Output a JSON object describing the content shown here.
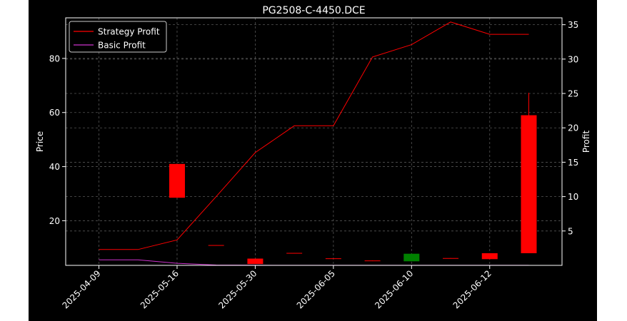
{
  "chart_data": {
    "type": "candlestick+line",
    "title": "PG2508-C-4450.DCE",
    "xlabel": "",
    "ylabel_left": "Price",
    "ylabel_right": "Profit",
    "x_tick_labels": [
      "2025-04-09",
      "2025-05-16",
      "2025-05-30",
      "2025-06-05",
      "2025-06-10",
      "2025-06-12"
    ],
    "x_tick_indices": [
      0,
      2,
      4,
      6,
      8,
      10
    ],
    "ylim_left": [
      3.5,
      95
    ],
    "yticks_left": [
      20,
      40,
      60,
      80
    ],
    "ylim_right": [
      0,
      36
    ],
    "yticks_right": [
      5,
      10,
      15,
      20,
      25,
      30,
      35
    ],
    "grid": true,
    "legend_position": "upper-left",
    "colors": {
      "background": "#000000",
      "text": "#ffffff",
      "grid": "#555555",
      "up": "#008000",
      "down": "#ff0000",
      "strategy": "#ff0000",
      "basic": "#cc33cc"
    },
    "candles": [
      {
        "i": 2,
        "open": 41.0,
        "high": 41.0,
        "low": 28.5,
        "close": 28.5
      },
      {
        "i": 3,
        "open": 11.0,
        "high": 11.0,
        "low": 10.8,
        "close": 10.8
      },
      {
        "i": 4,
        "open": 6.0,
        "high": 6.0,
        "low": 4.0,
        "close": 4.0
      },
      {
        "i": 5,
        "open": 8.1,
        "high": 8.1,
        "low": 7.9,
        "close": 7.9
      },
      {
        "i": 6,
        "open": 6.1,
        "high": 6.1,
        "low": 5.9,
        "close": 5.9
      },
      {
        "i": 7,
        "open": 5.3,
        "high": 5.3,
        "low": 5.1,
        "close": 5.1
      },
      {
        "i": 8,
        "open": 5.0,
        "high": 7.8,
        "low": 5.0,
        "close": 7.8
      },
      {
        "i": 9,
        "open": 6.2,
        "high": 6.2,
        "low": 6.0,
        "close": 6.0
      },
      {
        "i": 10,
        "open": 8.0,
        "high": 8.0,
        "low": 5.8,
        "close": 5.8
      },
      {
        "i": 11,
        "open": 59.0,
        "high": 67.3,
        "low": 8.0,
        "close": 8.0
      }
    ],
    "series": [
      {
        "name": "Strategy Profit",
        "color": "#ff0000",
        "axis": "right",
        "x": [
          0,
          1,
          2,
          3,
          4,
          5,
          6,
          7,
          8,
          9,
          10,
          11
        ],
        "values": [
          2.3,
          2.3,
          3.7,
          10.0,
          16.4,
          20.3,
          20.3,
          30.3,
          32.1,
          35.4,
          33.6,
          33.6
        ]
      },
      {
        "name": "Basic Profit",
        "color": "#cc33cc",
        "axis": "right",
        "x": [
          0,
          1,
          2,
          3,
          4,
          5,
          6,
          7,
          8,
          9,
          10,
          11
        ],
        "values": [
          0.8,
          0.8,
          0.3,
          0.05,
          0.02,
          0.01,
          0.01,
          0.01,
          0.01,
          0.01,
          0.01,
          0.01
        ]
      }
    ]
  }
}
